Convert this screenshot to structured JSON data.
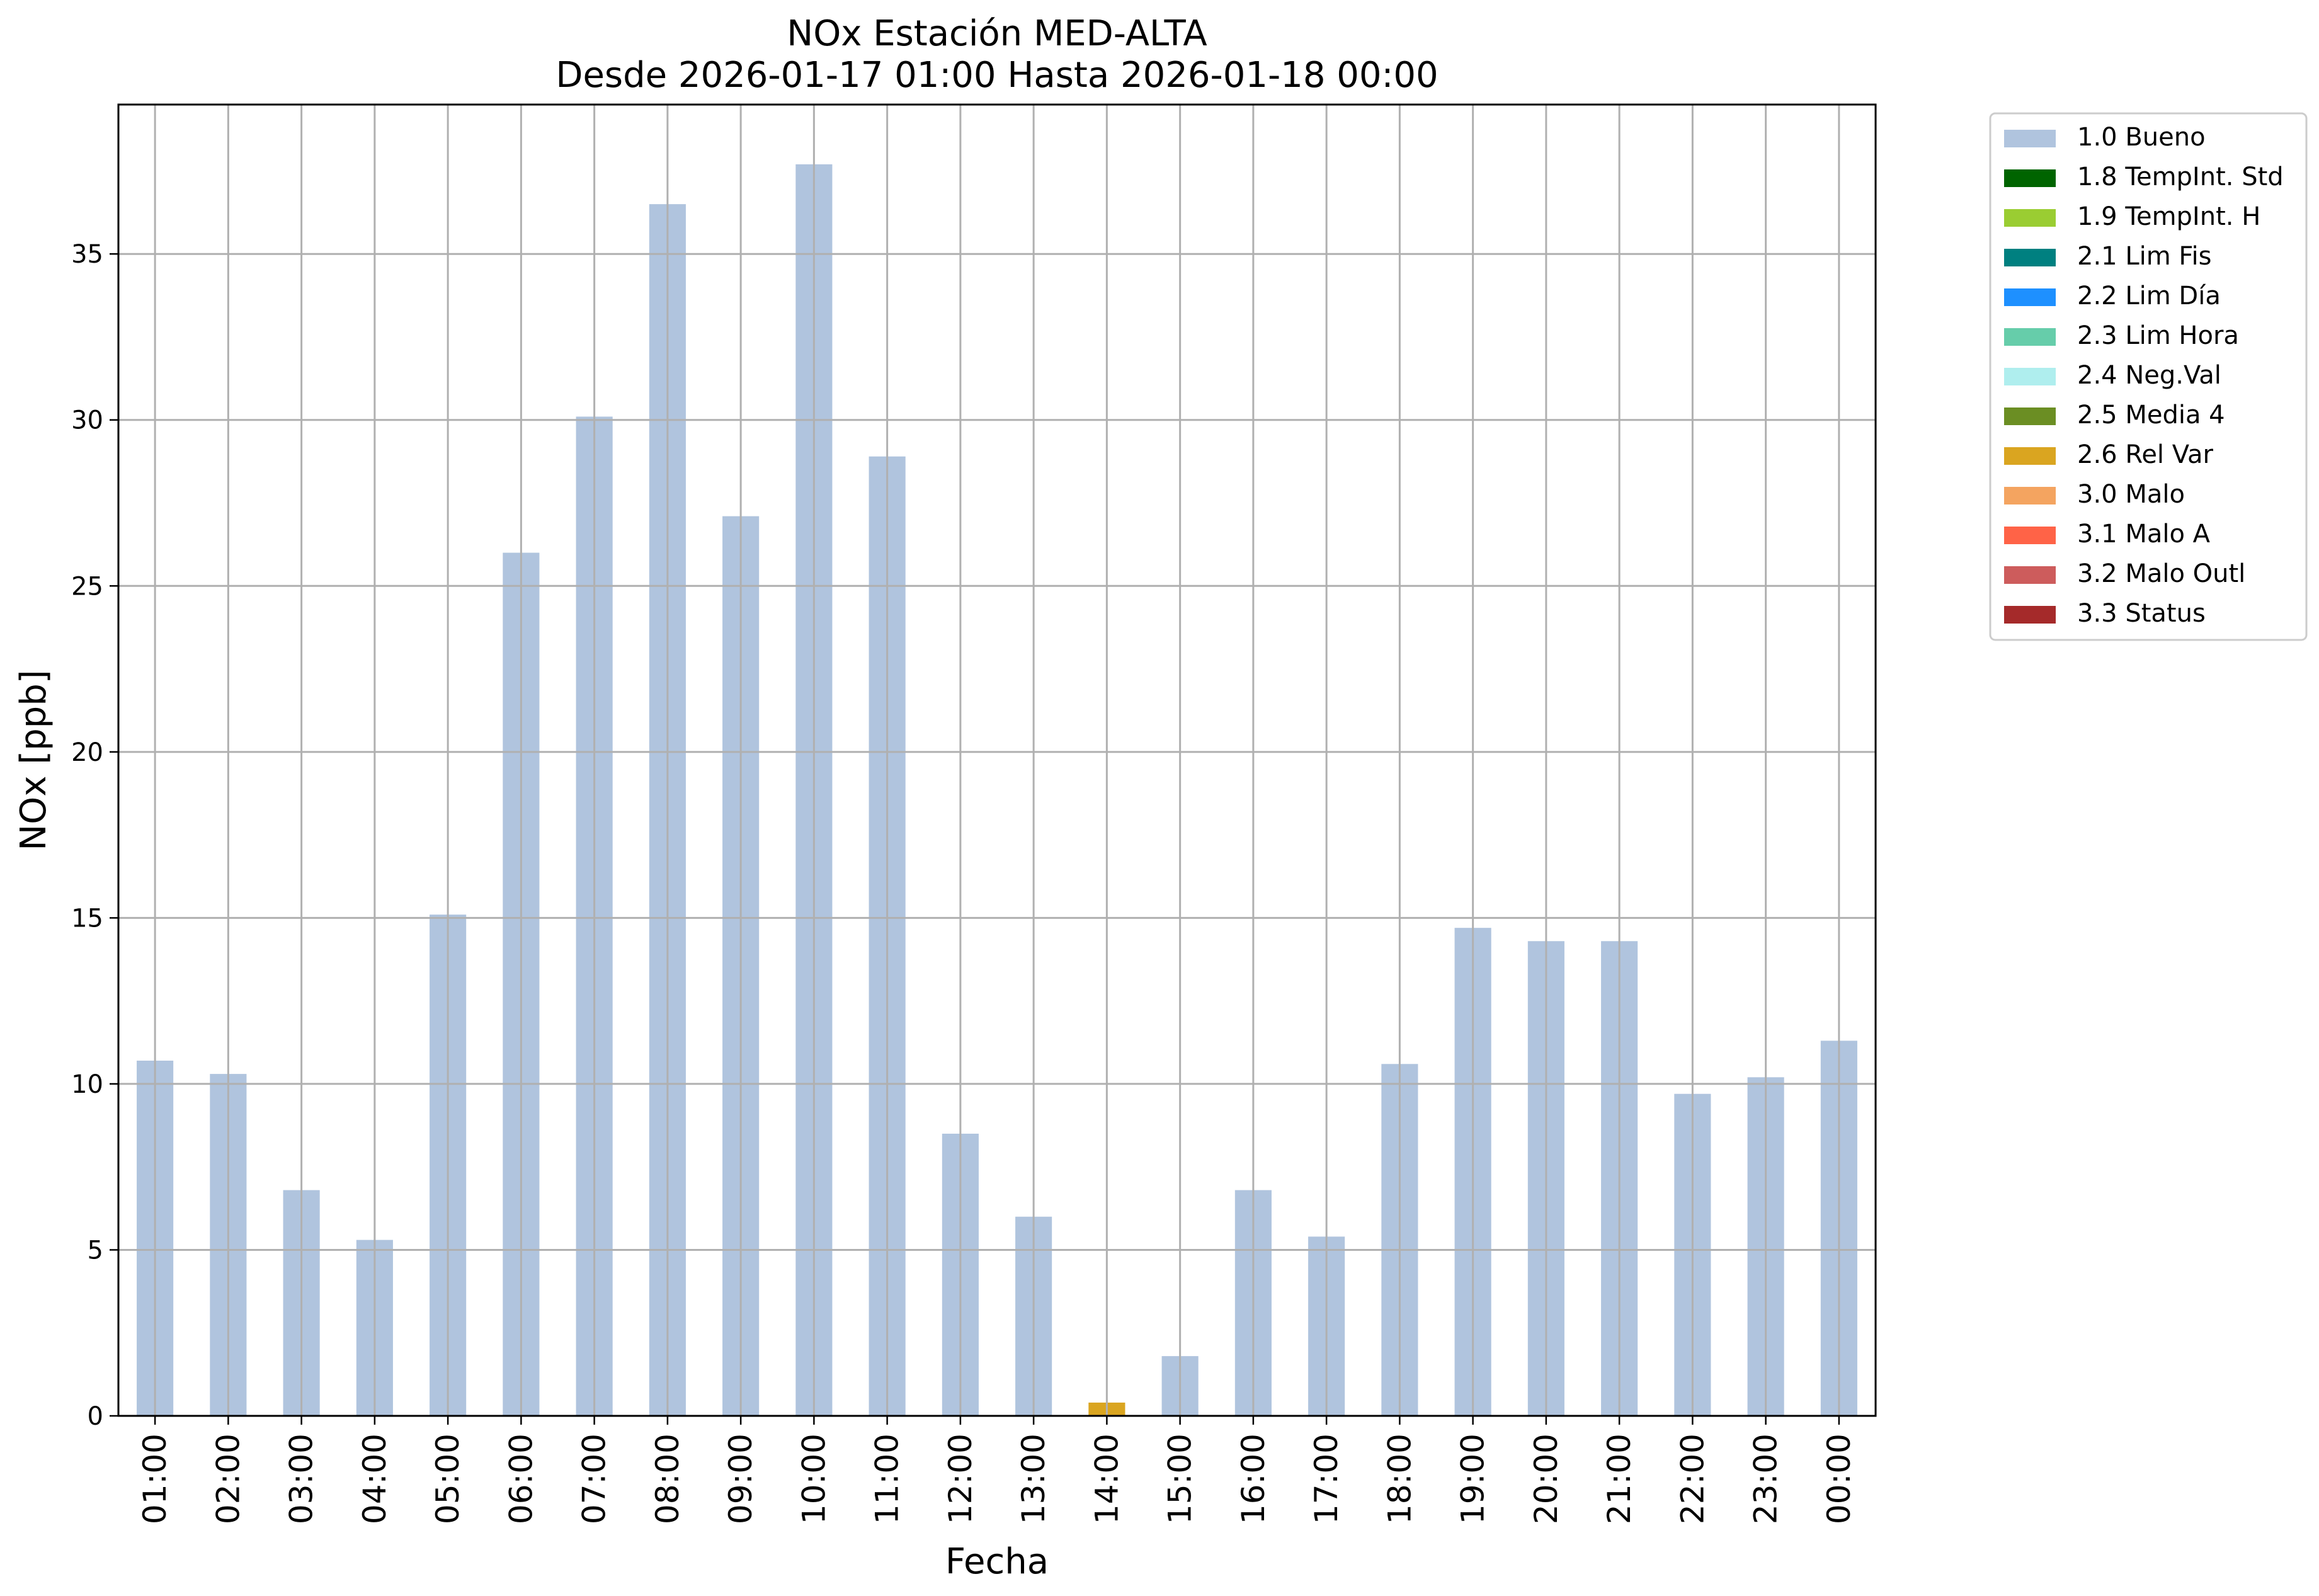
{
  "chart_data": {
    "type": "bar",
    "title": "NOx Estación MED-ALTA",
    "subtitle": "Desde 2026-01-17 01:00 Hasta 2026-01-18 00:00",
    "xlabel": "Fecha",
    "ylabel": "NOx [ppb]",
    "ylim": [
      0,
      39.5
    ],
    "yticks": [
      0,
      5,
      10,
      15,
      20,
      25,
      30,
      35
    ],
    "grid": true,
    "legend_position": "outside-top-right",
    "categories": [
      "01:00",
      "02:00",
      "03:00",
      "04:00",
      "05:00",
      "06:00",
      "07:00",
      "08:00",
      "09:00",
      "10:00",
      "11:00",
      "12:00",
      "13:00",
      "14:00",
      "15:00",
      "16:00",
      "17:00",
      "18:00",
      "19:00",
      "20:00",
      "21:00",
      "22:00",
      "23:00",
      "00:00"
    ],
    "values": [
      10.7,
      10.3,
      6.8,
      5.3,
      15.1,
      26.0,
      30.1,
      36.5,
      27.1,
      37.7,
      28.9,
      8.5,
      6.0,
      0.4,
      1.8,
      6.8,
      5.4,
      10.6,
      14.7,
      14.3,
      14.3,
      9.7,
      10.2,
      11.3
    ],
    "bar_flags": [
      "1.0 Bueno",
      "1.0 Bueno",
      "1.0 Bueno",
      "1.0 Bueno",
      "1.0 Bueno",
      "1.0 Bueno",
      "1.0 Bueno",
      "1.0 Bueno",
      "1.0 Bueno",
      "1.0 Bueno",
      "1.0 Bueno",
      "1.0 Bueno",
      "1.0 Bueno",
      "2.6 Rel Var",
      "1.0 Bueno",
      "1.0 Bueno",
      "1.0 Bueno",
      "1.0 Bueno",
      "1.0 Bueno",
      "1.0 Bueno",
      "1.0 Bueno",
      "1.0 Bueno",
      "1.0 Bueno",
      "1.0 Bueno"
    ],
    "legend": [
      {
        "label": "1.0 Bueno",
        "color": "#b0c4de"
      },
      {
        "label": "1.8 TempInt. Std",
        "color": "#006400"
      },
      {
        "label": "1.9 TempInt. H",
        "color": "#9acd32"
      },
      {
        "label": "2.1 Lim Fis",
        "color": "#008080"
      },
      {
        "label": "2.2 Lim Día",
        "color": "#1e90ff"
      },
      {
        "label": "2.3 Lim Hora",
        "color": "#66cdaa"
      },
      {
        "label": "2.4 Neg.Val",
        "color": "#afeeee"
      },
      {
        "label": "2.5 Media 4",
        "color": "#6b8e23"
      },
      {
        "label": "2.6 Rel Var",
        "color": "#daa520"
      },
      {
        "label": "3.0 Malo",
        "color": "#f4a460"
      },
      {
        "label": "3.1 Malo A",
        "color": "#ff6347"
      },
      {
        "label": "3.2 Malo Outl",
        "color": "#cd5c5c"
      },
      {
        "label": "3.3 Status",
        "color": "#a52a2a"
      }
    ]
  }
}
